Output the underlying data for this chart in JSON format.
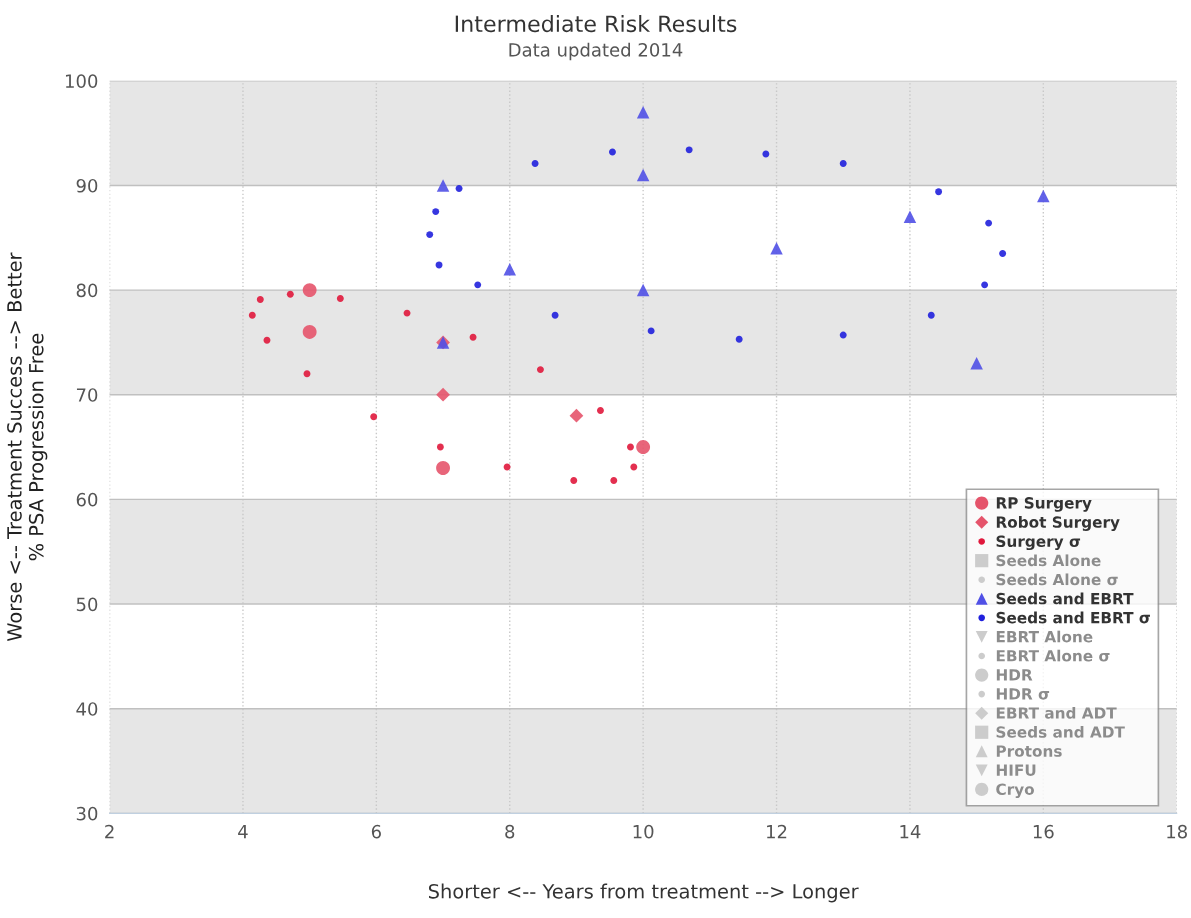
{
  "chart_data": {
    "type": "scatter",
    "title": "Intermediate Risk Results",
    "subtitle": "Data updated 2014",
    "xlabel": "Shorter <-- Years from treatment --> Longer",
    "ylabel": "Worse <-- Treatment Success --> Better\n% PSA Progression Free",
    "xlim": [
      2,
      18
    ],
    "xticks": [
      2,
      4,
      6,
      8,
      10,
      12,
      14,
      16,
      18
    ],
    "ylim": [
      30,
      100
    ],
    "yticks": [
      30,
      40,
      50,
      60,
      70,
      80,
      90,
      100
    ],
    "grid": true,
    "legend": "bottom right",
    "bands": [
      {
        "axis": "y",
        "from": 30,
        "to": 40,
        "color": "#e6e6e6"
      },
      {
        "axis": "y",
        "from": 50,
        "to": 60,
        "color": "#e6e6e6"
      },
      {
        "axis": "y",
        "from": 70,
        "to": 80,
        "color": "#e6e6e6"
      },
      {
        "axis": "y",
        "from": 90,
        "to": 100,
        "color": "#e6e6e6"
      }
    ],
    "series": [
      {
        "name": "RP Surgery",
        "type": "scatter",
        "marker": "circle",
        "color": "#e5546b",
        "x": [
          5,
          5,
          7,
          10
        ],
        "values": [
          80,
          76,
          63,
          65
        ]
      },
      {
        "name": "Robot Surgery",
        "type": "scatter",
        "marker": "diamond",
        "color": "#e5546b",
        "x": [
          7,
          7,
          9
        ],
        "values": [
          75,
          70,
          68
        ]
      },
      {
        "name": "Surgery σ",
        "type": "scatter",
        "color": "#e0183c",
        "marker": "point",
        "x": [
          4.14,
          4.26,
          4.71,
          5.46,
          6.46,
          7.45,
          8.46,
          9.36,
          9.81,
          9.86,
          9.56,
          8.96,
          7.96,
          6.96,
          5.96,
          4.96,
          4.36
        ],
        "values": [
          77.6,
          79.1,
          79.6,
          79.2,
          77.8,
          75.5,
          72.4,
          68.5,
          65.0,
          63.1,
          61.8,
          61.8,
          63.1,
          65.0,
          67.9,
          72.0,
          75.2
        ]
      },
      {
        "name": "Seeds Alone",
        "type": "scatter",
        "marker": "square",
        "color": "#cccccc"
      },
      {
        "name": "Seeds Alone σ",
        "type": "scatter",
        "marker": "point",
        "color": "#cccccc"
      },
      {
        "name": "Seeds and EBRT",
        "type": "scatter",
        "marker": "triangle",
        "color": "#5050e6",
        "x": [
          7,
          7,
          8,
          10,
          10,
          10,
          12,
          14,
          15,
          16
        ],
        "values": [
          90,
          75,
          82,
          97,
          91,
          80,
          84,
          87,
          73,
          89
        ]
      },
      {
        "name": "Seeds and EBRT σ",
        "type": "scatter",
        "color": "#2020dd",
        "marker": "point",
        "x": [
          6.8,
          6.89,
          7.24,
          8.38,
          9.54,
          10.69,
          11.84,
          13.0,
          14.43,
          15.18,
          15.39,
          15.12,
          14.32,
          13.0,
          11.44,
          10.12,
          8.68,
          7.52,
          6.94
        ],
        "values": [
          85.3,
          87.5,
          89.7,
          92.1,
          93.2,
          93.4,
          93.0,
          92.1,
          89.4,
          86.4,
          83.5,
          80.5,
          77.6,
          75.7,
          75.3,
          76.1,
          77.6,
          80.5,
          82.4
        ]
      },
      {
        "name": "EBRT Alone",
        "type": "scatter",
        "marker": "triangle_down",
        "color": "#cccccc"
      },
      {
        "name": "EBRT Alone σ",
        "type": "scatter",
        "marker": "point",
        "color": "#cccccc"
      },
      {
        "name": "HDR",
        "type": "scatter",
        "marker": "circle",
        "color": "#cccccc"
      },
      {
        "name": "HDR σ",
        "type": "scatter",
        "marker": "point",
        "color": "#cccccc"
      },
      {
        "name": "EBRT and ADT",
        "type": "scatter",
        "marker": "diamond",
        "color": "#cccccc"
      },
      {
        "name": "Seeds and ADT",
        "type": "scatter",
        "marker": "square",
        "color": "#cccccc"
      },
      {
        "name": "Protons",
        "type": "scatter",
        "marker": "triangle",
        "color": "#cccccc"
      },
      {
        "name": "HIFU",
        "type": "scatter",
        "marker": "triangle_down",
        "color": "#cccccc"
      },
      {
        "name": "Cryo",
        "type": "scatter",
        "marker": "circle",
        "color": "#cccccc"
      }
    ]
  }
}
